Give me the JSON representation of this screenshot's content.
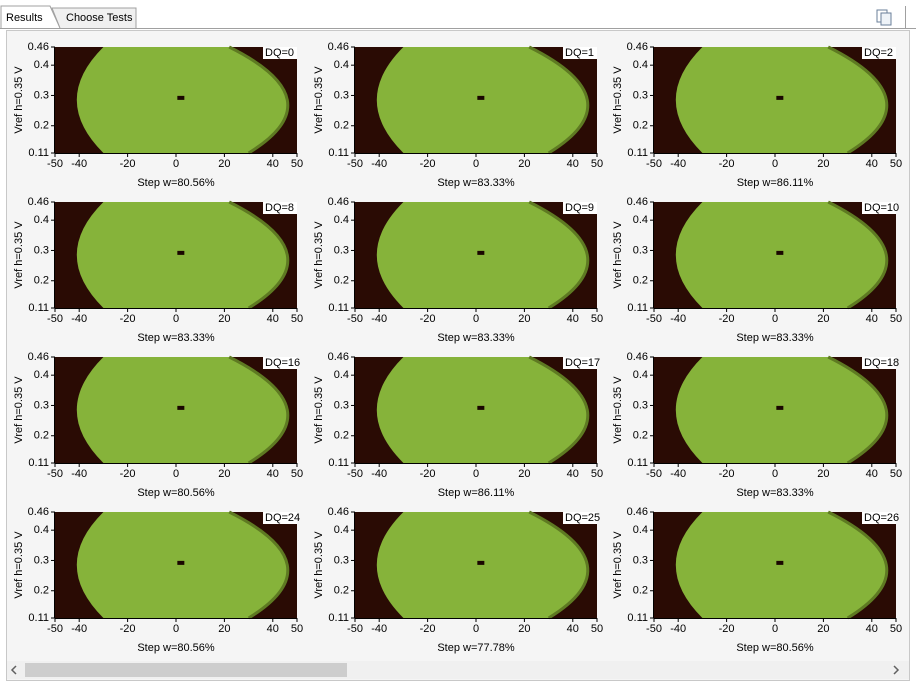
{
  "tabs": [
    "Results",
    "Choose Tests"
  ],
  "axes": {
    "xlim": [
      -50,
      50
    ],
    "ylim": [
      0.11,
      0.46
    ],
    "xticks": [
      -50,
      -40,
      -20,
      0,
      20,
      40,
      50
    ],
    "yticks": [
      0.11,
      0.2,
      0.3,
      0.4,
      0.46
    ],
    "ylabel": "Vref h=0.35 V"
  },
  "panels": [
    {
      "label": "DQ=0",
      "xlabel": "Step w=80.56%"
    },
    {
      "label": "DQ=1",
      "xlabel": "Step w=83.33%"
    },
    {
      "label": "DQ=2",
      "xlabel": "Step w=86.11%"
    },
    {
      "label": "DQ=8",
      "xlabel": "Step w=83.33%"
    },
    {
      "label": "DQ=9",
      "xlabel": "Step w=83.33%"
    },
    {
      "label": "DQ=10",
      "xlabel": "Step w=83.33%"
    },
    {
      "label": "DQ=16",
      "xlabel": "Step w=80.56%"
    },
    {
      "label": "DQ=17",
      "xlabel": "Step w=86.11%"
    },
    {
      "label": "DQ=18",
      "xlabel": "Step w=83.33%"
    },
    {
      "label": "DQ=24",
      "xlabel": "Step w=80.56%"
    },
    {
      "label": "DQ=25",
      "xlabel": "Step w=77.78%"
    },
    {
      "label": "DQ=26",
      "xlabel": "Step w=80.56%"
    }
  ]
}
